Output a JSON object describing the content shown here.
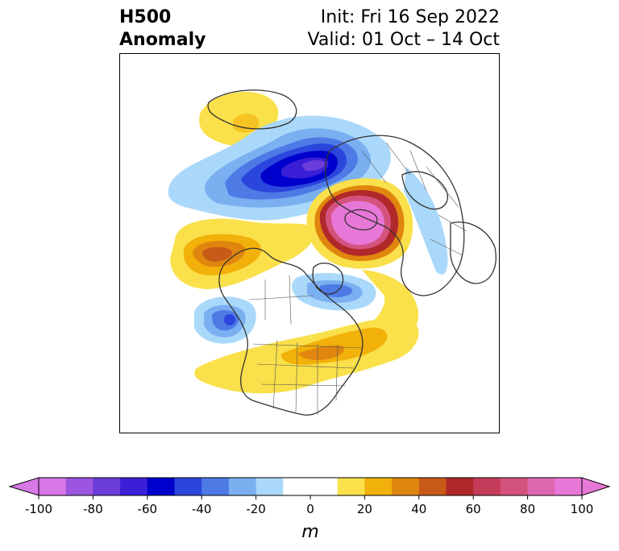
{
  "title": {
    "left_line1": "H500",
    "left_line2": "Anomaly",
    "right_line1": "Init: Fri 16 Sep 2022",
    "right_line2": "Valid: 01 Oct – 14 Oct"
  },
  "colorbar": {
    "ticks": [
      "-100",
      "-80",
      "-60",
      "-40",
      "-20",
      "0",
      "20",
      "40",
      "60",
      "80",
      "100"
    ],
    "unit": "m",
    "colors": [
      "#d778e6",
      "#9b55e0",
      "#6a3ddb",
      "#3a1fd6",
      "#0000cc",
      "#2a46dc",
      "#4e7ae6",
      "#7aaff0",
      "#aad8fa",
      "#ffffff",
      "#ffffff",
      "#fae04a",
      "#f2b10a",
      "#e0860e",
      "#c85a18",
      "#b0282a",
      "#c53c5a",
      "#d4527e",
      "#de68b0",
      "#e878d8"
    ]
  },
  "map": {
    "projection": "polar stereographic, north pole",
    "features": [
      "blue-anomaly-canada-greenland",
      "pink-anomaly-siberia",
      "gold-anomaly-atlantic",
      "blue-anomaly-pacific"
    ]
  }
}
